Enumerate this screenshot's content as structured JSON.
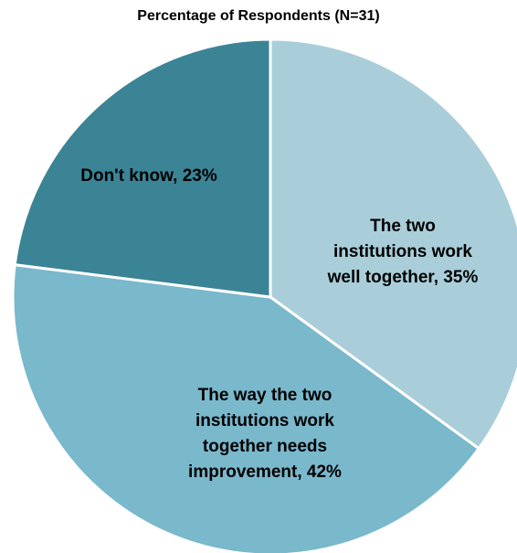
{
  "chart_data": {
    "type": "pie",
    "title": "Percentage of Respondents (N=31)",
    "slices": [
      {
        "label": "The two institutions work well together",
        "value": 35,
        "display_lines": [
          "The two",
          "institutions work",
          "well together, 35%"
        ],
        "color": "#a9ceda"
      },
      {
        "label": "The way the two institutions work together needs improvement",
        "value": 42,
        "display_lines": [
          "The way the two",
          "institutions work",
          "together needs",
          "improvement, 42%"
        ],
        "color": "#7ab8cc"
      },
      {
        "label": "Don't know",
        "value": 23,
        "display_lines": [
          "Don't know, 23%"
        ],
        "color": "#3b8496"
      }
    ],
    "legend": "none",
    "start_angle_deg": 0,
    "direction": "clockwise"
  }
}
